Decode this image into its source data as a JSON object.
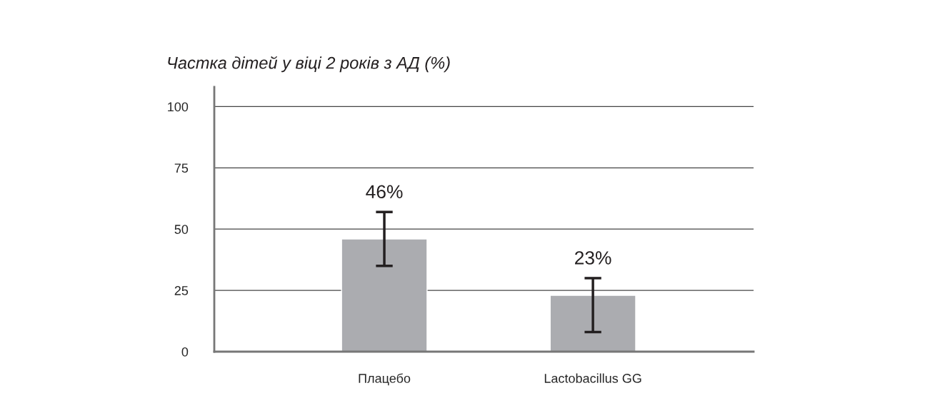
{
  "chart_data": {
    "type": "bar",
    "title": "Частка дітей у віці 2 років з АД (%)",
    "categories": [
      "Плацебо",
      "Lactobacillus GG"
    ],
    "values": [
      46,
      23
    ],
    "color": "#abacb0",
    "errors": [
      [
        35,
        57
      ],
      [
        8,
        30
      ]
    ],
    "value_labels": [
      "46%",
      "23%"
    ],
    "ylim": [
      0,
      108
    ],
    "yticks": [
      0,
      25,
      50,
      75,
      100
    ],
    "grid": "y",
    "legend": false
  }
}
